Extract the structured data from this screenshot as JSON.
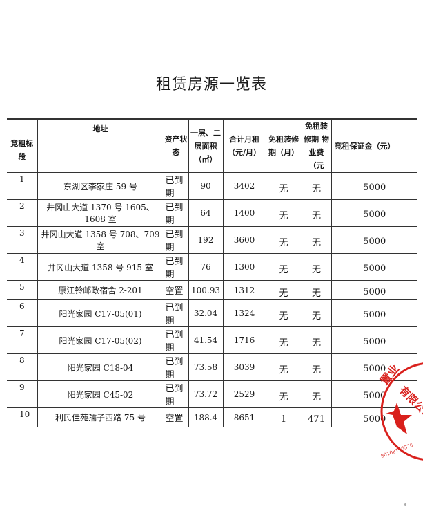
{
  "title": "租赁房源一览表",
  "table": {
    "headers": [
      "竞租标段",
      "地址",
      "资产状态",
      "一层、二层面积（㎡）",
      "合计月租（元/月）",
      "免租装修期（月）",
      "免租装修期 物业费（元",
      "竞租保证金（元）"
    ],
    "rows": [
      {
        "no": "1",
        "address": "东湖区李家庄 59 号",
        "status": "已到期",
        "area": "90",
        "rent": "3402",
        "free_months": "无",
        "free_fee": "无",
        "deposit": "5000"
      },
      {
        "no": "2",
        "address": "井冈山大道 1370 号 1605、1608 室",
        "status": "已到期",
        "area": "64",
        "rent": "1400",
        "free_months": "无",
        "free_fee": "无",
        "deposit": "5000"
      },
      {
        "no": "3",
        "address": "井冈山大道 1358 号 708、709 室",
        "status": "已到期",
        "area": "192",
        "rent": "3600",
        "free_months": "无",
        "free_fee": "无",
        "deposit": "5000"
      },
      {
        "no": "4",
        "address": "井冈山大道 1358 号 915 室",
        "status": "已到期",
        "area": "76",
        "rent": "1300",
        "free_months": "无",
        "free_fee": "无",
        "deposit": "5000"
      },
      {
        "no": "5",
        "address": "原江铃邮政宿舍 2-201",
        "status": "空置",
        "area": "100.93",
        "rent": "1312",
        "free_months": "无",
        "free_fee": "无",
        "deposit": "5000"
      },
      {
        "no": "6",
        "address": "阳光家园 C17-05(01)",
        "status": "已到期",
        "area": "32.04",
        "rent": "1324",
        "free_months": "无",
        "free_fee": "无",
        "deposit": "5000"
      },
      {
        "no": "7",
        "address": "阳光家园 C17-05(02)",
        "status": "已到期",
        "area": "41.54",
        "rent": "1716",
        "free_months": "无",
        "free_fee": "无",
        "deposit": "5000"
      },
      {
        "no": "8",
        "address": "阳光家园 C18-04",
        "status": "已到期",
        "area": "73.58",
        "rent": "3039",
        "free_months": "无",
        "free_fee": "无",
        "deposit": "5000"
      },
      {
        "no": "9",
        "address": "阳光家园 C45-02",
        "status": "已到期",
        "area": "73.72",
        "rent": "2529",
        "free_months": "无",
        "free_fee": "无",
        "deposit": "5000"
      },
      {
        "no": "10",
        "address": "利民佳苑孺子西路 75 号",
        "status": "空置",
        "area": "188.4",
        "rent": "8651",
        "free_months": "1",
        "free_fee": "471",
        "deposit": "5000"
      }
    ]
  },
  "stamp": {
    "text": "置业有限公司",
    "number": "80108116576",
    "color": "#d9201c"
  }
}
